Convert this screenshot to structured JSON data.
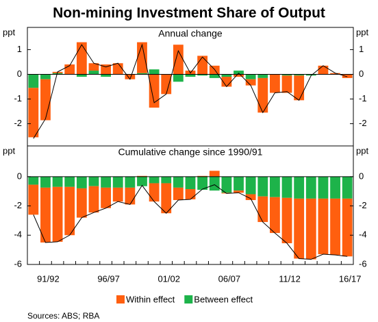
{
  "title": "Non-mining Investment Share of Output",
  "sources": "Sources:   ABS; RBA",
  "chart_data": [
    {
      "type": "bar",
      "stacked": true,
      "subtitle": "Annual change",
      "unit_left": "ppt",
      "unit_right": "ppt",
      "categories": [
        null,
        "91/92",
        null,
        null,
        null,
        null,
        "96/97",
        null,
        null,
        null,
        null,
        "01/02",
        null,
        null,
        null,
        null,
        "06/07",
        null,
        null,
        null,
        null,
        "11/12",
        null,
        null,
        null,
        null,
        "16/17"
      ],
      "series": [
        {
          "name": "Between effect",
          "color": "#1db34a",
          "values": [
            -0.55,
            -0.2,
            0.05,
            0,
            -0.1,
            0.15,
            -0.1,
            0,
            0,
            0.05,
            0.2,
            0,
            -0.3,
            -0.1,
            -0.05,
            -0.15,
            -0.1,
            0.15,
            -0.2,
            -0.15,
            0,
            -0.05,
            -0.05,
            -0.05,
            0,
            0,
            0
          ]
        },
        {
          "name": "Within effect",
          "color": "#ff5f0f",
          "values": [
            -2.0,
            -1.66,
            0.05,
            0.4,
            1.3,
            0.3,
            0.4,
            0.45,
            -0.2,
            1.25,
            -1.35,
            -0.8,
            1.2,
            0.15,
            0.75,
            0.35,
            -0.4,
            -0.1,
            -0.25,
            -1.4,
            -0.75,
            -0.7,
            -1.0,
            0,
            0.35,
            0.05,
            -0.15
          ]
        }
      ],
      "line": {
        "color": "#000000",
        "values": [
          -2.6,
          -1.8,
          0.1,
          0.35,
          1.2,
          0.45,
          0.3,
          0.45,
          -0.2,
          1.2,
          -1.15,
          -0.8,
          0.95,
          0.05,
          0.7,
          0.2,
          -0.5,
          0.05,
          -0.45,
          -1.55,
          -0.75,
          -0.7,
          -1.05,
          -0.05,
          0.35,
          0.05,
          -0.1
        ]
      },
      "ylim": [
        -2.9,
        1.9
      ],
      "yticks": [
        -2,
        -1,
        0,
        1
      ]
    },
    {
      "type": "bar",
      "stacked": true,
      "subtitle": "Cumulative change since 1990/91",
      "unit_left": "ppt",
      "unit_right": "ppt",
      "categories": [
        null,
        "91/92",
        null,
        null,
        null,
        null,
        "96/97",
        null,
        null,
        null,
        null,
        "01/02",
        null,
        null,
        null,
        null,
        "06/07",
        null,
        null,
        null,
        null,
        "11/12",
        null,
        null,
        null,
        null,
        "16/17"
      ],
      "series": [
        {
          "name": "Between effect",
          "color": "#1db34a",
          "values": [
            -0.55,
            -0.75,
            -0.7,
            -0.7,
            -0.8,
            -0.65,
            -0.75,
            -0.75,
            -0.75,
            -0.65,
            -0.45,
            -0.45,
            -0.75,
            -0.85,
            -0.9,
            -0.95,
            -1.1,
            -0.95,
            -1.2,
            -1.35,
            -1.4,
            -1.45,
            -1.5,
            -1.5,
            -1.5,
            -1.5,
            -1.5
          ]
        },
        {
          "name": "Within effect",
          "color": "#ff5f0f",
          "values": [
            -2.05,
            -3.75,
            -3.75,
            -3.3,
            -2.0,
            -1.8,
            -1.4,
            -0.95,
            -1.15,
            0.05,
            -1.25,
            -2.05,
            -0.85,
            -0.7,
            0.05,
            0.4,
            -0.05,
            -0.15,
            -0.4,
            -1.75,
            -2.45,
            -3.1,
            -4.1,
            -4.15,
            -3.8,
            -3.85,
            -3.95
          ]
        }
      ],
      "line": {
        "color": "#000000",
        "values": [
          -2.6,
          -4.5,
          -4.45,
          -4.0,
          -2.8,
          -2.45,
          -2.15,
          -1.7,
          -1.9,
          -0.6,
          -1.7,
          -2.5,
          -1.6,
          -1.55,
          -0.85,
          -0.55,
          -1.15,
          -1.1,
          -1.5,
          -3.1,
          -3.85,
          -4.55,
          -5.6,
          -5.65,
          -5.3,
          -5.35,
          -5.45
        ]
      },
      "ylim": [
        -6,
        2.1
      ],
      "yticks": [
        -6,
        -4,
        -2,
        0
      ]
    }
  ]
}
